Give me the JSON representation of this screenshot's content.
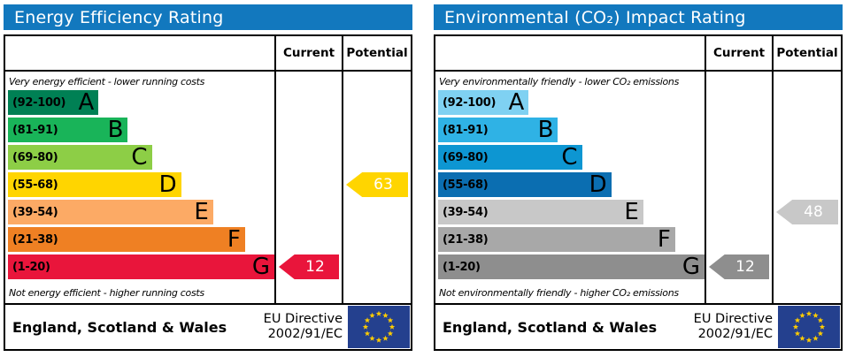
{
  "colors": {
    "header_bg": "#1278be",
    "header_text": "#ffffff",
    "border": "#000000",
    "arrow_text": "#ffffff",
    "eu_flag_bg": "#24408e",
    "eu_star": "#ffcc00"
  },
  "chart_data": [
    {
      "type": "bar",
      "title": "Energy Efficiency Rating",
      "columns": {
        "current": "Current",
        "potential": "Potential"
      },
      "top_caption": "Very energy efficient - lower running costs",
      "bottom_caption": "Not energy efficient - higher running costs",
      "bands": [
        {
          "letter": "A",
          "range": "(92-100)",
          "color": "#008054",
          "width_pct": 34
        },
        {
          "letter": "B",
          "range": "(81-91)",
          "color": "#19b459",
          "width_pct": 45
        },
        {
          "letter": "C",
          "range": "(69-80)",
          "color": "#8dce46",
          "width_pct": 54
        },
        {
          "letter": "D",
          "range": "(55-68)",
          "color": "#ffd500",
          "width_pct": 65
        },
        {
          "letter": "E",
          "range": "(39-54)",
          "color": "#fcaa65",
          "width_pct": 77
        },
        {
          "letter": "F",
          "range": "(21-38)",
          "color": "#ef8023",
          "width_pct": 89
        },
        {
          "letter": "G",
          "range": "(1-20)",
          "color": "#e9153b",
          "width_pct": 100
        }
      ],
      "current": {
        "value": 12,
        "band": "G",
        "color": "#e9153b"
      },
      "potential": {
        "value": 63,
        "band": "D",
        "color": "#ffd500"
      },
      "footer": {
        "region": "England, Scotland & Wales",
        "directive_line1": "EU Directive",
        "directive_line2": "2002/91/EC"
      }
    },
    {
      "type": "bar",
      "title": "Environmental (CO₂) Impact Rating",
      "columns": {
        "current": "Current",
        "potential": "Potential"
      },
      "top_caption": "Very environmentally friendly - lower CO₂ emissions",
      "bottom_caption": "Not environmentally friendly - higher CO₂ emissions",
      "bands": [
        {
          "letter": "A",
          "range": "(92-100)",
          "color": "#7fd1f2",
          "width_pct": 34
        },
        {
          "letter": "B",
          "range": "(81-91)",
          "color": "#2fb2e5",
          "width_pct": 45
        },
        {
          "letter": "C",
          "range": "(69-80)",
          "color": "#0d96d2",
          "width_pct": 54
        },
        {
          "letter": "D",
          "range": "(55-68)",
          "color": "#0b6eb1",
          "width_pct": 65
        },
        {
          "letter": "E",
          "range": "(39-54)",
          "color": "#c8c8c8",
          "width_pct": 77
        },
        {
          "letter": "F",
          "range": "(21-38)",
          "color": "#a8a8a8",
          "width_pct": 89
        },
        {
          "letter": "G",
          "range": "(1-20)",
          "color": "#8e8e8e",
          "width_pct": 100
        }
      ],
      "current": {
        "value": 12,
        "band": "G",
        "color": "#8e8e8e"
      },
      "potential": {
        "value": 48,
        "band": "E",
        "color": "#c8c8c8"
      },
      "footer": {
        "region": "England, Scotland & Wales",
        "directive_line1": "EU Directive",
        "directive_line2": "2002/91/EC"
      }
    }
  ]
}
